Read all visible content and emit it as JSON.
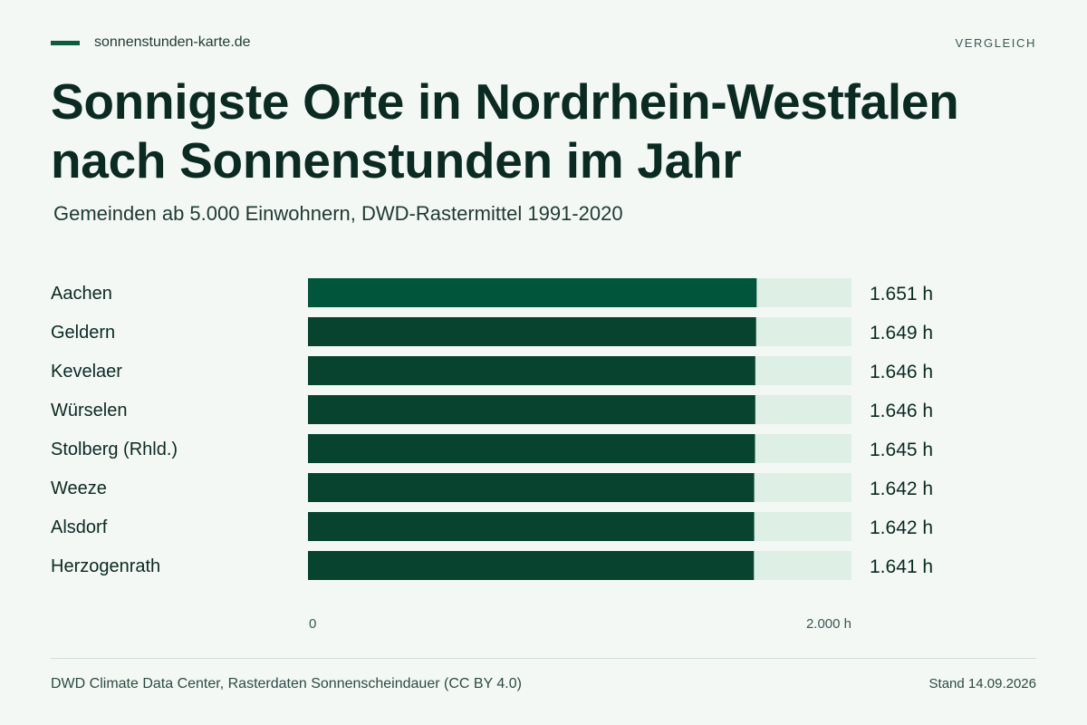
{
  "header": {
    "brand": "sonnenstunden-karte.de",
    "tag": "VERGLEICH"
  },
  "title": {
    "line1": "Sonnigste Orte in Nordrhein-Westfalen",
    "line2": "nach Sonnenstunden im Jahr"
  },
  "subtitle": "Gemeinden ab 5.000 Einwohnern, DWD-Rastermittel 1991-2020",
  "chart_data": {
    "type": "bar",
    "orientation": "horizontal",
    "categories": [
      "Aachen",
      "Geldern",
      "Kevelaer",
      "Würselen",
      "Stolberg (Rhld.)",
      "Weeze",
      "Alsdorf",
      "Herzogenrath"
    ],
    "values": [
      1651,
      1649,
      1646,
      1646,
      1645,
      1642,
      1642,
      1641
    ],
    "value_labels": [
      "1.651 h",
      "1.649 h",
      "1.646 h",
      "1.646 h",
      "1.645 h",
      "1.642 h",
      "1.642 h",
      "1.641 h"
    ],
    "xlim": [
      0,
      2000
    ],
    "x_ticks": [
      {
        "value": 0,
        "label": "0"
      },
      {
        "value": 2000,
        "label": "2.000 h"
      }
    ],
    "colors": {
      "highlight_bar": "#00553a",
      "bar": "#08432f",
      "track": "#deefe5"
    },
    "highlight_index": 0,
    "grid": false
  },
  "footer": {
    "source": "DWD Climate Data Center, Rasterdaten Sonnenscheindauer (CC BY 4.0)",
    "date": "Stand 14.09.2026"
  }
}
